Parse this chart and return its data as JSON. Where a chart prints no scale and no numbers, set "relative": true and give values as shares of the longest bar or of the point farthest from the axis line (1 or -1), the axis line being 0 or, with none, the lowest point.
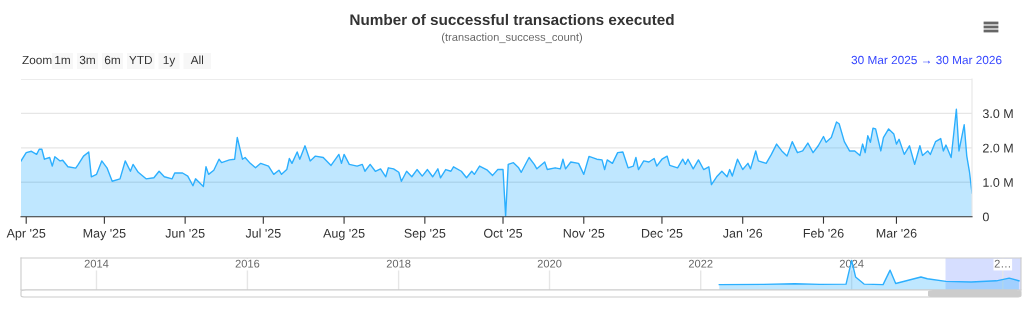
{
  "chart_data": [
    {
      "type": "area",
      "title": "Number of successful transactions executed",
      "subtitle": "(transaction_success_count)",
      "annotations": [
        "Zoom",
        "1m",
        "3m",
        "6m",
        "YTD",
        "1y",
        "All",
        "30 Mar 2025 → 30 Mar 2026"
      ],
      "x": [
        "2025-03-30",
        "2025-04-01",
        "2025-04-03",
        "2025-04-05",
        "2025-04-06",
        "2025-04-07",
        "2025-04-08",
        "2025-04-10",
        "2025-04-11",
        "2025-04-12",
        "2025-04-14",
        "2025-04-15",
        "2025-04-17",
        "2025-04-20",
        "2025-04-21",
        "2025-04-23",
        "2025-04-25",
        "2025-04-26",
        "2025-04-28",
        "2025-04-30",
        "2025-05-02",
        "2025-05-04",
        "2025-05-07",
        "2025-05-09",
        "2025-05-11",
        "2025-05-12",
        "2025-05-14",
        "2025-05-17",
        "2025-05-20",
        "2025-05-22",
        "2025-05-24",
        "2025-05-27",
        "2025-05-28",
        "2025-05-31",
        "2025-06-02",
        "2025-06-04",
        "2025-06-05",
        "2025-06-08",
        "2025-06-09",
        "2025-06-10",
        "2025-06-12",
        "2025-06-14",
        "2025-06-15",
        "2025-06-18",
        "2025-06-20",
        "2025-06-21",
        "2025-06-23",
        "2025-06-24",
        "2025-06-26",
        "2025-06-28",
        "2025-06-30",
        "2025-07-03",
        "2025-07-05",
        "2025-07-07",
        "2025-07-08",
        "2025-07-10",
        "2025-07-11",
        "2025-07-12",
        "2025-07-14",
        "2025-07-15",
        "2025-07-17",
        "2025-07-19",
        "2025-07-21",
        "2025-07-24",
        "2025-07-27",
        "2025-07-30",
        "2025-07-31",
        "2025-08-01",
        "2025-08-03",
        "2025-08-06",
        "2025-08-08",
        "2025-08-09",
        "2025-08-11",
        "2025-08-13",
        "2025-08-15",
        "2025-08-17",
        "2025-08-18",
        "2025-08-20",
        "2025-08-22",
        "2025-08-23",
        "2025-08-25",
        "2025-08-27",
        "2025-08-29",
        "2025-08-31",
        "2025-09-02",
        "2025-09-04",
        "2025-09-06",
        "2025-09-07",
        "2025-09-09",
        "2025-09-11",
        "2025-09-12",
        "2025-09-15",
        "2025-09-17",
        "2025-09-19",
        "2025-09-20",
        "2025-09-22",
        "2025-09-25",
        "2025-09-27",
        "2025-09-29",
        "2025-10-01",
        "2025-10-02",
        "2025-10-03",
        "2025-10-05",
        "2025-10-07",
        "2025-10-08",
        "2025-10-11",
        "2025-10-13",
        "2025-10-14",
        "2025-10-17",
        "2025-10-18",
        "2025-10-21",
        "2025-10-23",
        "2025-10-24",
        "2025-10-25",
        "2025-10-27",
        "2025-10-30",
        "2025-11-01",
        "2025-11-03",
        "2025-11-06",
        "2025-11-08",
        "2025-11-09",
        "2025-11-10",
        "2025-11-12",
        "2025-11-14",
        "2025-11-16",
        "2025-11-18",
        "2025-11-20",
        "2025-11-21",
        "2025-11-22",
        "2025-11-24",
        "2025-11-26",
        "2025-11-28",
        "2025-11-29",
        "2025-12-01",
        "2025-12-03",
        "2025-12-04",
        "2025-12-07",
        "2025-12-09",
        "2025-12-10",
        "2025-12-11",
        "2025-12-13",
        "2025-12-15",
        "2025-12-17",
        "2025-12-19",
        "2025-12-20",
        "2025-12-22",
        "2025-12-24",
        "2025-12-26",
        "2025-12-27",
        "2025-12-28",
        "2025-12-30",
        "2026-01-01",
        "2026-01-03",
        "2026-01-04",
        "2026-01-06",
        "2026-01-07",
        "2026-01-10",
        "2026-01-12",
        "2026-01-14",
        "2026-01-16",
        "2026-01-18",
        "2026-01-20",
        "2026-01-22",
        "2026-01-24",
        "2026-01-26",
        "2026-01-28",
        "2026-01-30",
        "2026-02-01",
        "2026-02-02",
        "2026-02-04",
        "2026-02-06",
        "2026-02-07",
        "2026-02-09",
        "2026-02-11",
        "2026-02-13",
        "2026-02-15",
        "2026-02-16",
        "2026-02-17",
        "2026-02-18",
        "2026-02-19",
        "2026-02-20",
        "2026-02-21",
        "2026-02-23",
        "2026-02-24",
        "2026-02-26",
        "2026-02-28",
        "2026-03-01",
        "2026-03-02",
        "2026-03-04",
        "2026-03-06",
        "2026-03-08",
        "2026-03-10",
        "2026-03-11",
        "2026-03-13",
        "2026-03-14",
        "2026-03-16",
        "2026-03-18",
        "2026-03-19",
        "2026-03-20",
        "2026-03-22",
        "2026-03-24",
        "2026-03-25",
        "2026-03-27",
        "2026-03-28",
        "2026-03-29",
        "2026-03-30"
      ],
      "values": [
        1.62,
        1.86,
        1.9,
        1.81,
        1.96,
        1.96,
        1.67,
        1.72,
        1.47,
        1.74,
        1.62,
        1.64,
        1.45,
        1.41,
        1.52,
        1.76,
        1.88,
        1.16,
        1.23,
        1.62,
        1.42,
        1.03,
        1.1,
        1.62,
        1.32,
        1.52,
        1.29,
        1.1,
        1.13,
        1.32,
        1.16,
        1.1,
        1.27,
        1.27,
        1.18,
        0.9,
        1.1,
        0.88,
        1.45,
        1.23,
        1.35,
        1.67,
        1.57,
        1.65,
        1.67,
        2.3,
        1.67,
        1.72,
        1.55,
        1.42,
        1.55,
        1.47,
        1.23,
        1.35,
        1.23,
        1.37,
        1.69,
        1.55,
        1.88,
        1.67,
        2.06,
        1.62,
        1.76,
        1.72,
        1.49,
        1.81,
        1.55,
        1.81,
        1.52,
        1.47,
        1.52,
        1.32,
        1.52,
        1.32,
        1.39,
        1.16,
        1.42,
        1.39,
        1.29,
        1.03,
        1.32,
        1.16,
        1.37,
        1.18,
        1.37,
        1.16,
        1.39,
        1.13,
        1.37,
        1.32,
        1.45,
        1.32,
        1.13,
        1.32,
        1.23,
        1.47,
        1.35,
        1.2,
        1.37,
        1.37,
        0.02,
        1.52,
        1.57,
        1.42,
        1.29,
        1.72,
        1.52,
        1.39,
        1.59,
        1.37,
        1.42,
        1.39,
        1.67,
        1.39,
        1.59,
        1.55,
        1.23,
        1.75,
        1.67,
        1.65,
        1.37,
        1.65,
        1.55,
        1.86,
        1.88,
        1.42,
        1.47,
        1.72,
        1.37,
        1.62,
        1.59,
        1.69,
        1.47,
        1.67,
        1.76,
        1.49,
        1.42,
        1.67,
        1.52,
        1.67,
        1.39,
        1.65,
        1.37,
        1.45,
        0.93,
        1.16,
        1.32,
        1.16,
        1.37,
        1.18,
        1.67,
        1.37,
        1.55,
        1.39,
        1.91,
        1.62,
        1.55,
        1.81,
        2.11,
        1.91,
        1.76,
        2.18,
        1.86,
        1.91,
        2.14,
        1.86,
        2.06,
        2.33,
        2.16,
        2.3,
        2.75,
        2.7,
        2.18,
        1.91,
        1.91,
        1.78,
        2.11,
        1.86,
        2.35,
        2.16,
        2.57,
        2.55,
        1.91,
        2.3,
        2.55,
        2.4,
        2.11,
        2.25,
        1.81,
        2.06,
        1.52,
        2.06,
        1.78,
        1.91,
        1.81,
        2.18,
        2.27,
        1.91,
        2.08,
        1.72,
        3.12,
        1.91,
        2.67,
        1.76,
        1.32,
        0.69
      ],
      "color": "#2caffe",
      "xlim": [
        "2025-03-30",
        "2026-03-30"
      ],
      "xticks": [
        {
          "value": "2025-04-01",
          "label": "Apr '25"
        },
        {
          "value": "2025-05-01",
          "label": "May '25"
        },
        {
          "value": "2025-06-01",
          "label": "Jun '25"
        },
        {
          "value": "2025-07-01",
          "label": "Jul '25"
        },
        {
          "value": "2025-08-01",
          "label": "Aug '25"
        },
        {
          "value": "2025-09-01",
          "label": "Sep '25"
        },
        {
          "value": "2025-10-01",
          "label": "Oct '25"
        },
        {
          "value": "2025-11-01",
          "label": "Nov '25"
        },
        {
          "value": "2025-12-01",
          "label": "Dec '25"
        },
        {
          "value": "2026-01-01",
          "label": "Jan '26"
        },
        {
          "value": "2026-02-01",
          "label": "Feb '26"
        },
        {
          "value": "2026-03-01",
          "label": "Mar '26"
        }
      ],
      "ylim": [
        0,
        4
      ],
      "yticks": [
        0,
        {
          "value": 1,
          "label": "1.0 M"
        },
        {
          "value": 2,
          "label": "2.0 M"
        },
        {
          "value": 3,
          "label": "3.0 M"
        },
        {
          "value": 4,
          "label": null
        }
      ],
      "grid": "y"
    },
    {
      "type": "area",
      "relative": true,
      "tick_labels": "x",
      "grid": "x",
      "color": "#2caffe",
      "x": [
        "2022-04",
        "2022-11",
        "2023-04",
        "2023-08",
        "2023-12-05",
        "2024-01-01",
        "2024-01-20",
        "2024-03",
        "2024-06",
        "2024-07-05",
        "2024-08",
        "2024-10",
        "2024-12",
        "2025-01",
        "2025-04",
        "2025-08",
        "2025-12",
        "2026-02",
        "2026-03-20"
      ],
      "values": [
        0.18,
        0.19,
        0.21,
        0.19,
        0.2,
        1,
        0.44,
        0.2,
        0.18,
        0.67,
        0.22,
        0.33,
        0.44,
        0.38,
        0.29,
        0.27,
        0.31,
        0.4,
        0.31
      ],
      "xlim": [
        "2013-01-01",
        "2026-03-30"
      ],
      "xticks": [
        {
          "value": "2014-01-01",
          "label": "2014"
        },
        {
          "value": "2016-01-01",
          "label": "2016"
        },
        {
          "value": "2018-01-01",
          "label": "2018"
        },
        {
          "value": "2020-01-01",
          "label": "2020"
        },
        {
          "value": "2022-01-01",
          "label": "2022"
        },
        {
          "value": "2024-01-01",
          "label": "2024"
        },
        {
          "value": "2026-01-01",
          "label": "2…"
        }
      ],
      "bands": [
        {
          "axis": "x",
          "from": "2025-03-30",
          "to": "2026-03-30",
          "color": "#ccd6ff"
        }
      ]
    }
  ]
}
